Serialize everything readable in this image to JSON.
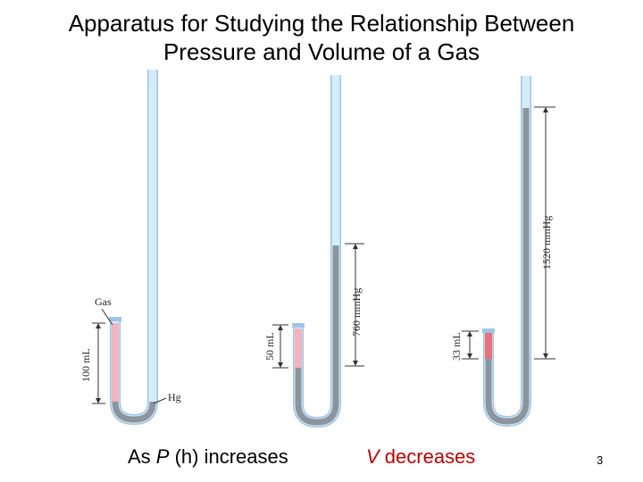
{
  "title": {
    "line1": "Apparatus for Studying the Relationship Between",
    "line2": "Pressure and Volume of a Gas"
  },
  "labels": {
    "gas": "Gas",
    "hg": "Hg",
    "vol1": "100 mL",
    "vol2": "50 mL",
    "vol3": "33 mL",
    "h2": "760 mmHg",
    "h3": "1520 mmHg"
  },
  "caption": {
    "left_prefix": "As ",
    "left_var": "P",
    "left_suffix": " (h) increases",
    "right_var": "V",
    "right_suffix": " decreases"
  },
  "slide_number": "3",
  "colors": {
    "tube": "#d6ecfb",
    "tube_edge": "#9cc6e6",
    "mercury": "#8d949c",
    "mercury_dark": "#5f666e",
    "gas_low_pressure": "#f4b3be",
    "gas_high_pressure": "#ec6f7c"
  }
}
